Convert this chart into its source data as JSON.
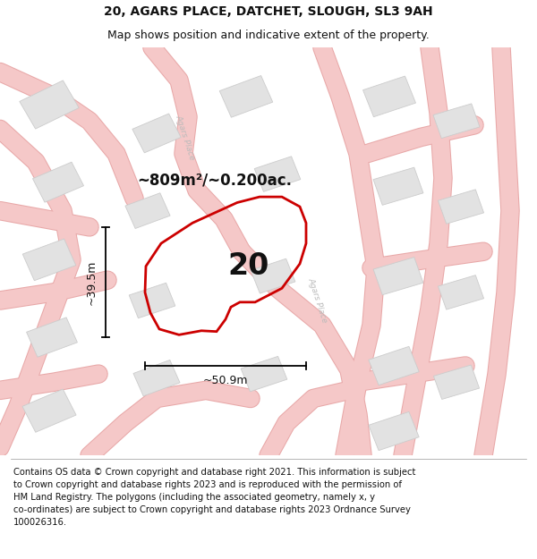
{
  "title": "20, AGARS PLACE, DATCHET, SLOUGH, SL3 9AH",
  "subtitle": "Map shows position and indicative extent of the property.",
  "footer": "Contains OS data © Crown copyright and database right 2021. This information is subject to Crown copyright and database rights 2023 and is reproduced with the permission of HM Land Registry. The polygons (including the associated geometry, namely x, y co-ordinates) are subject to Crown copyright and database rights 2023 Ordnance Survey 100026316.",
  "area_label": "~809m²/~0.200ac.",
  "number_label": "20",
  "width_label": "~50.9m",
  "height_label": "~39.5m",
  "map_bg": "#f2f0f0",
  "road_fill": "#f5c8c8",
  "road_edge": "#e8a8a8",
  "building_fill": "#e2e2e2",
  "building_edge": "#cccccc",
  "street_label_color": "#bbbbbb",
  "plot_color": "#cc0000",
  "title_fontsize": 10,
  "subtitle_fontsize": 9,
  "footer_fontsize": 7.2,
  "area_fontsize": 12,
  "number_fontsize": 24,
  "dim_fontsize": 9
}
